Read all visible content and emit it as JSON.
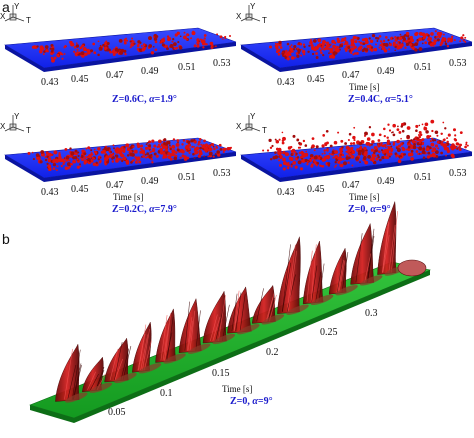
{
  "figure": {
    "panel_a_letter": "a",
    "panel_b_letter": "b",
    "colors": {
      "plate_top": "#1e2fff",
      "plate_side": "#0a14a0",
      "vortex": "#e01010",
      "vortex_dark": "#7a0a0a",
      "green_plate": "#1fae2a",
      "green_side": "#0d6e16",
      "caption_blue": "#1a1acc"
    },
    "triad": {
      "x": "X",
      "y": "Y",
      "t": "T"
    },
    "panels_a": [
      {
        "id": "p1",
        "caption_main": "Z=0.6C,",
        "caption_sym": "α",
        "caption_val": "=1.9°",
        "time_label": "",
        "ticks": [
          "0.43",
          "0.45",
          "0.47",
          "0.49",
          "0.51",
          "0.53"
        ],
        "show_triad": true
      },
      {
        "id": "p2",
        "caption_main": "Z=0.4C,",
        "caption_sym": "α",
        "caption_val": "=5.1°",
        "time_label": "Time [s]",
        "ticks": [
          "0.43",
          "0.45",
          "0.47",
          "0.49",
          "0.51",
          "0.53"
        ],
        "show_triad": true
      },
      {
        "id": "p3",
        "caption_main": "Z=0.2C,",
        "caption_sym": "α",
        "caption_val": "=7.9°",
        "time_label": "Time [s]",
        "ticks": [
          "0.43",
          "0.45",
          "0.47",
          "0.49",
          "0.51",
          "0.53"
        ],
        "show_triad": true
      },
      {
        "id": "p4",
        "caption_main": "Z=0,",
        "caption_sym": "α",
        "caption_val": "=9°",
        "time_label": "Time [s]",
        "ticks": [
          "0.43",
          "0.45",
          "0.47",
          "0.49",
          "0.51",
          "0.53"
        ],
        "show_triad": true
      }
    ],
    "panel_b": {
      "ticks": [
        "0.05",
        "0.1",
        "0.15",
        "0.2",
        "0.25",
        "0.3"
      ],
      "time_label": "Time [s]",
      "caption_main": "Z=0,",
      "caption_sym": "α",
      "caption_val": "=9°"
    }
  }
}
